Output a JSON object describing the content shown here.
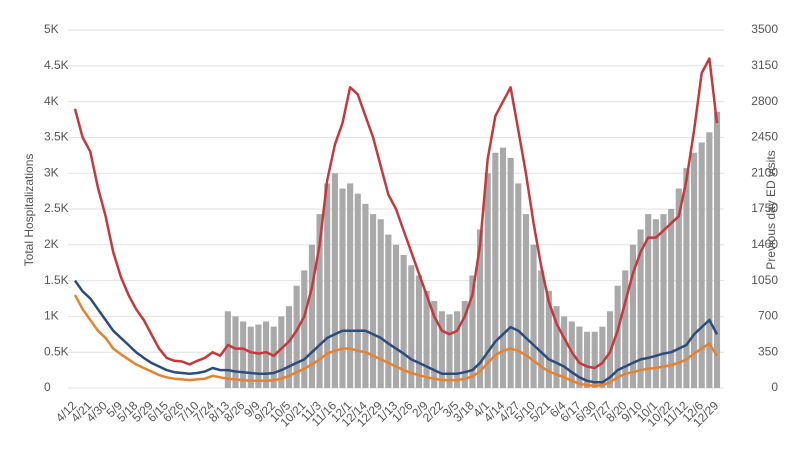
{
  "chart_data": {
    "type": "bar_line",
    "y_label": "Total Hospitalizations",
    "y2_label": "Previous day ED visits",
    "categories": [
      "4/12",
      null,
      "4/21",
      null,
      "4/30",
      null,
      "5/9",
      null,
      "5/18",
      null,
      "5/29",
      null,
      "6/15",
      null,
      "6/26",
      null,
      "7/10",
      null,
      "7/24",
      null,
      "8/13",
      null,
      "8/26",
      null,
      "9/9",
      null,
      "9/22",
      null,
      "10/5",
      null,
      "10/21",
      null,
      "11/3",
      null,
      "11/16",
      null,
      "12/1",
      null,
      "12/14",
      null,
      "12/29",
      null,
      "1/13",
      null,
      "1/26",
      null,
      "2/9",
      null,
      "2/22",
      null,
      "3/5",
      null,
      "3/18",
      null,
      "4/1",
      null,
      "4/14",
      null,
      "4/27",
      null,
      "5/10",
      null,
      "5/21",
      null,
      "6/4",
      null,
      "6/17",
      null,
      "6/30",
      null,
      "7/27",
      null,
      "8/20",
      null,
      "9/10",
      null,
      "10/1",
      null,
      "10/22",
      null,
      "11/12",
      null,
      "12/6",
      null,
      "12/29"
    ],
    "ylim": [
      0,
      5000
    ],
    "yticks": [
      0,
      {
        "value": 500,
        "label": "0.5K"
      },
      {
        "value": 1000,
        "label": "1K"
      },
      {
        "value": 1500,
        "label": "1.5K"
      },
      {
        "value": 2000,
        "label": "2K"
      },
      {
        "value": 2500,
        "label": "2.5K"
      },
      {
        "value": 3000,
        "label": "3K"
      },
      {
        "value": 3500,
        "label": "3.5K"
      },
      {
        "value": 4000,
        "label": "4K"
      },
      {
        "value": 4500,
        "label": "4.5K"
      },
      {
        "value": 5000,
        "label": "5K"
      }
    ],
    "y2lim": [
      0,
      3500
    ],
    "y2ticks": [
      0,
      350,
      700,
      1050,
      1400,
      1750,
      2100,
      2450,
      2800,
      3150,
      3500
    ],
    "grid": true,
    "series": [
      {
        "type": "bar",
        "axis": "y2",
        "color": "#a9a9a9",
        "values": [
          null,
          null,
          null,
          null,
          null,
          null,
          null,
          null,
          null,
          null,
          null,
          null,
          null,
          null,
          null,
          null,
          null,
          null,
          null,
          null,
          750,
          700,
          650,
          600,
          620,
          650,
          600,
          700,
          800,
          1000,
          1150,
          1400,
          1700,
          2000,
          2100,
          1950,
          2000,
          1900,
          1800,
          1700,
          1650,
          1500,
          1400,
          1300,
          1200,
          1100,
          950,
          850,
          750,
          720,
          750,
          850,
          1100,
          1550,
          2100,
          2300,
          2350,
          2250,
          2000,
          1700,
          1400,
          1150,
          950,
          800,
          700,
          650,
          600,
          550,
          550,
          600,
          750,
          1000,
          1150,
          1400,
          1550,
          1700,
          1650,
          1700,
          1750,
          1950,
          2150,
          2300,
          2400,
          2500,
          2700
        ]
      },
      {
        "type": "line",
        "color": "#c8373a",
        "values": [
          3900,
          3500,
          3300,
          2800,
          2400,
          1900,
          1550,
          1300,
          1100,
          950,
          750,
          550,
          420,
          380,
          370,
          330,
          380,
          420,
          500,
          450,
          600,
          550,
          550,
          500,
          480,
          500,
          450,
          550,
          650,
          800,
          1000,
          1400,
          2000,
          2900,
          3400,
          3700,
          4200,
          4100,
          3800,
          3500,
          3100,
          2700,
          2500,
          2200,
          1900,
          1600,
          1300,
          1000,
          800,
          750,
          800,
          1000,
          1300,
          2000,
          3200,
          3800,
          4000,
          4200,
          3600,
          3000,
          2300,
          1700,
          1200,
          900,
          700,
          500,
          350,
          300,
          280,
          350,
          500,
          800,
          1200,
          1600,
          1900,
          2100,
          2100,
          2200,
          2300,
          2400,
          2900,
          3600,
          4400,
          4600,
          3700
        ]
      },
      {
        "type": "line",
        "color": "#2b4c7e",
        "values": [
          1500,
          1350,
          1250,
          1100,
          950,
          800,
          700,
          600,
          500,
          420,
          350,
          300,
          250,
          220,
          210,
          200,
          210,
          230,
          280,
          250,
          250,
          230,
          220,
          210,
          200,
          200,
          210,
          250,
          300,
          350,
          400,
          500,
          600,
          700,
          750,
          800,
          800,
          800,
          800,
          750,
          700,
          620,
          550,
          480,
          400,
          350,
          300,
          250,
          200,
          200,
          200,
          220,
          250,
          350,
          500,
          650,
          750,
          850,
          800,
          700,
          600,
          500,
          400,
          350,
          300,
          220,
          150,
          100,
          80,
          80,
          150,
          250,
          300,
          350,
          400,
          420,
          450,
          480,
          500,
          550,
          600,
          750,
          850,
          950,
          750
        ]
      },
      {
        "type": "line",
        "color": "#e8812f",
        "values": [
          1300,
          1100,
          950,
          800,
          700,
          550,
          470,
          400,
          330,
          280,
          230,
          180,
          150,
          130,
          120,
          110,
          120,
          130,
          170,
          150,
          130,
          120,
          110,
          100,
          100,
          100,
          110,
          130,
          170,
          220,
          270,
          330,
          400,
          480,
          520,
          550,
          550,
          520,
          500,
          450,
          400,
          350,
          300,
          250,
          210,
          180,
          150,
          130,
          110,
          110,
          110,
          130,
          160,
          230,
          350,
          460,
          520,
          550,
          520,
          460,
          380,
          300,
          230,
          190,
          150,
          100,
          60,
          40,
          30,
          40,
          80,
          150,
          200,
          220,
          250,
          270,
          280,
          300,
          320,
          350,
          400,
          480,
          550,
          620,
          450
        ]
      }
    ]
  }
}
